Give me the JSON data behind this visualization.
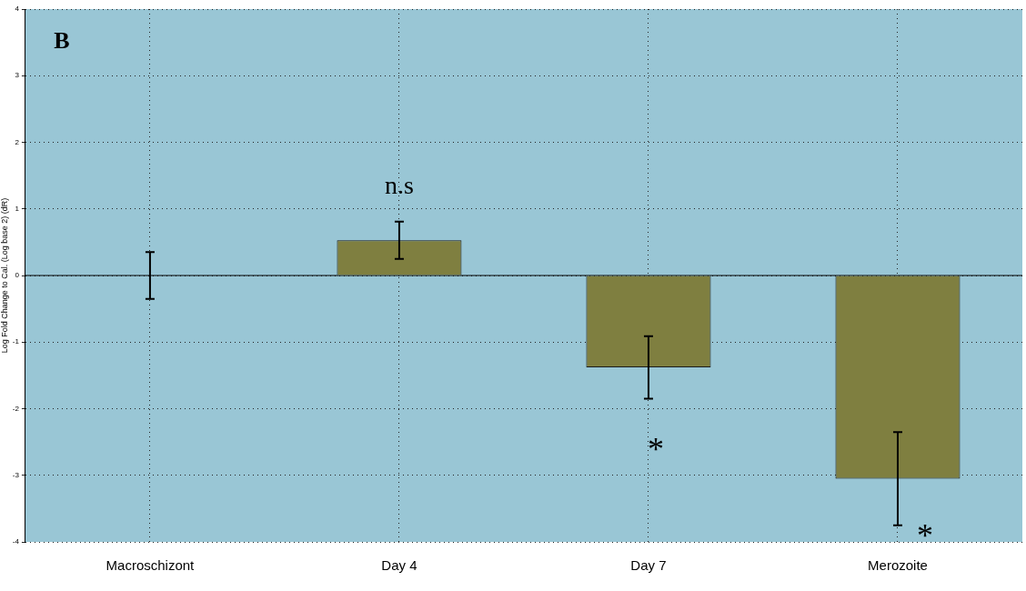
{
  "chart_data": {
    "type": "bar",
    "ylabel": "Log Fold Change to Cal. (Log base 2) (dR)",
    "categories": [
      "Macroschizont",
      "Day 4",
      "Day 7",
      "Merozoite"
    ],
    "values": [
      0,
      0.53,
      -1.38,
      -3.05
    ],
    "errors": [
      0.35,
      0.28,
      0.47,
      0.7
    ],
    "color": "#7f7f40",
    "ylim": [
      -4,
      4
    ],
    "yticks": [
      -4,
      -3,
      -2,
      -1,
      0,
      1,
      2,
      3,
      4
    ],
    "grid": true,
    "legend": false,
    "annotations": [
      "B",
      "n.s",
      "*",
      "*"
    ]
  }
}
